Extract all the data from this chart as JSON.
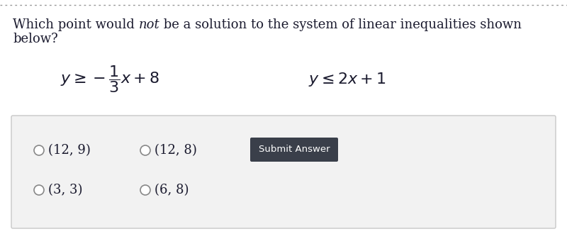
{
  "title_line1_pre": "Which point would ",
  "title_line1_italic": "not",
  "title_line1_post": " be a solution to the system of linear inequalities shown",
  "title_line2": "below?",
  "ineq1_latex": "$y \\geq -\\dfrac{1}{3}x + 8$",
  "ineq2_latex": "$y \\leq 2x + 1$",
  "answers": [
    "(12, 9)",
    "(12, 8)",
    "(3, 3)",
    "(6, 8)"
  ],
  "submit_button_text": "Submit Answer",
  "bg_color": "#ffffff",
  "answer_box_color": "#f2f2f2",
  "answer_box_border": "#c8c8c8",
  "submit_btn_color": "#3a3f4a",
  "submit_btn_text_color": "#ffffff",
  "dotted_line_color": "#999999",
  "text_color": "#1a1a2e",
  "circle_color": "#888888",
  "title_fontsize": 13.0,
  "ineq_fontsize": 16,
  "answer_fontsize": 13
}
